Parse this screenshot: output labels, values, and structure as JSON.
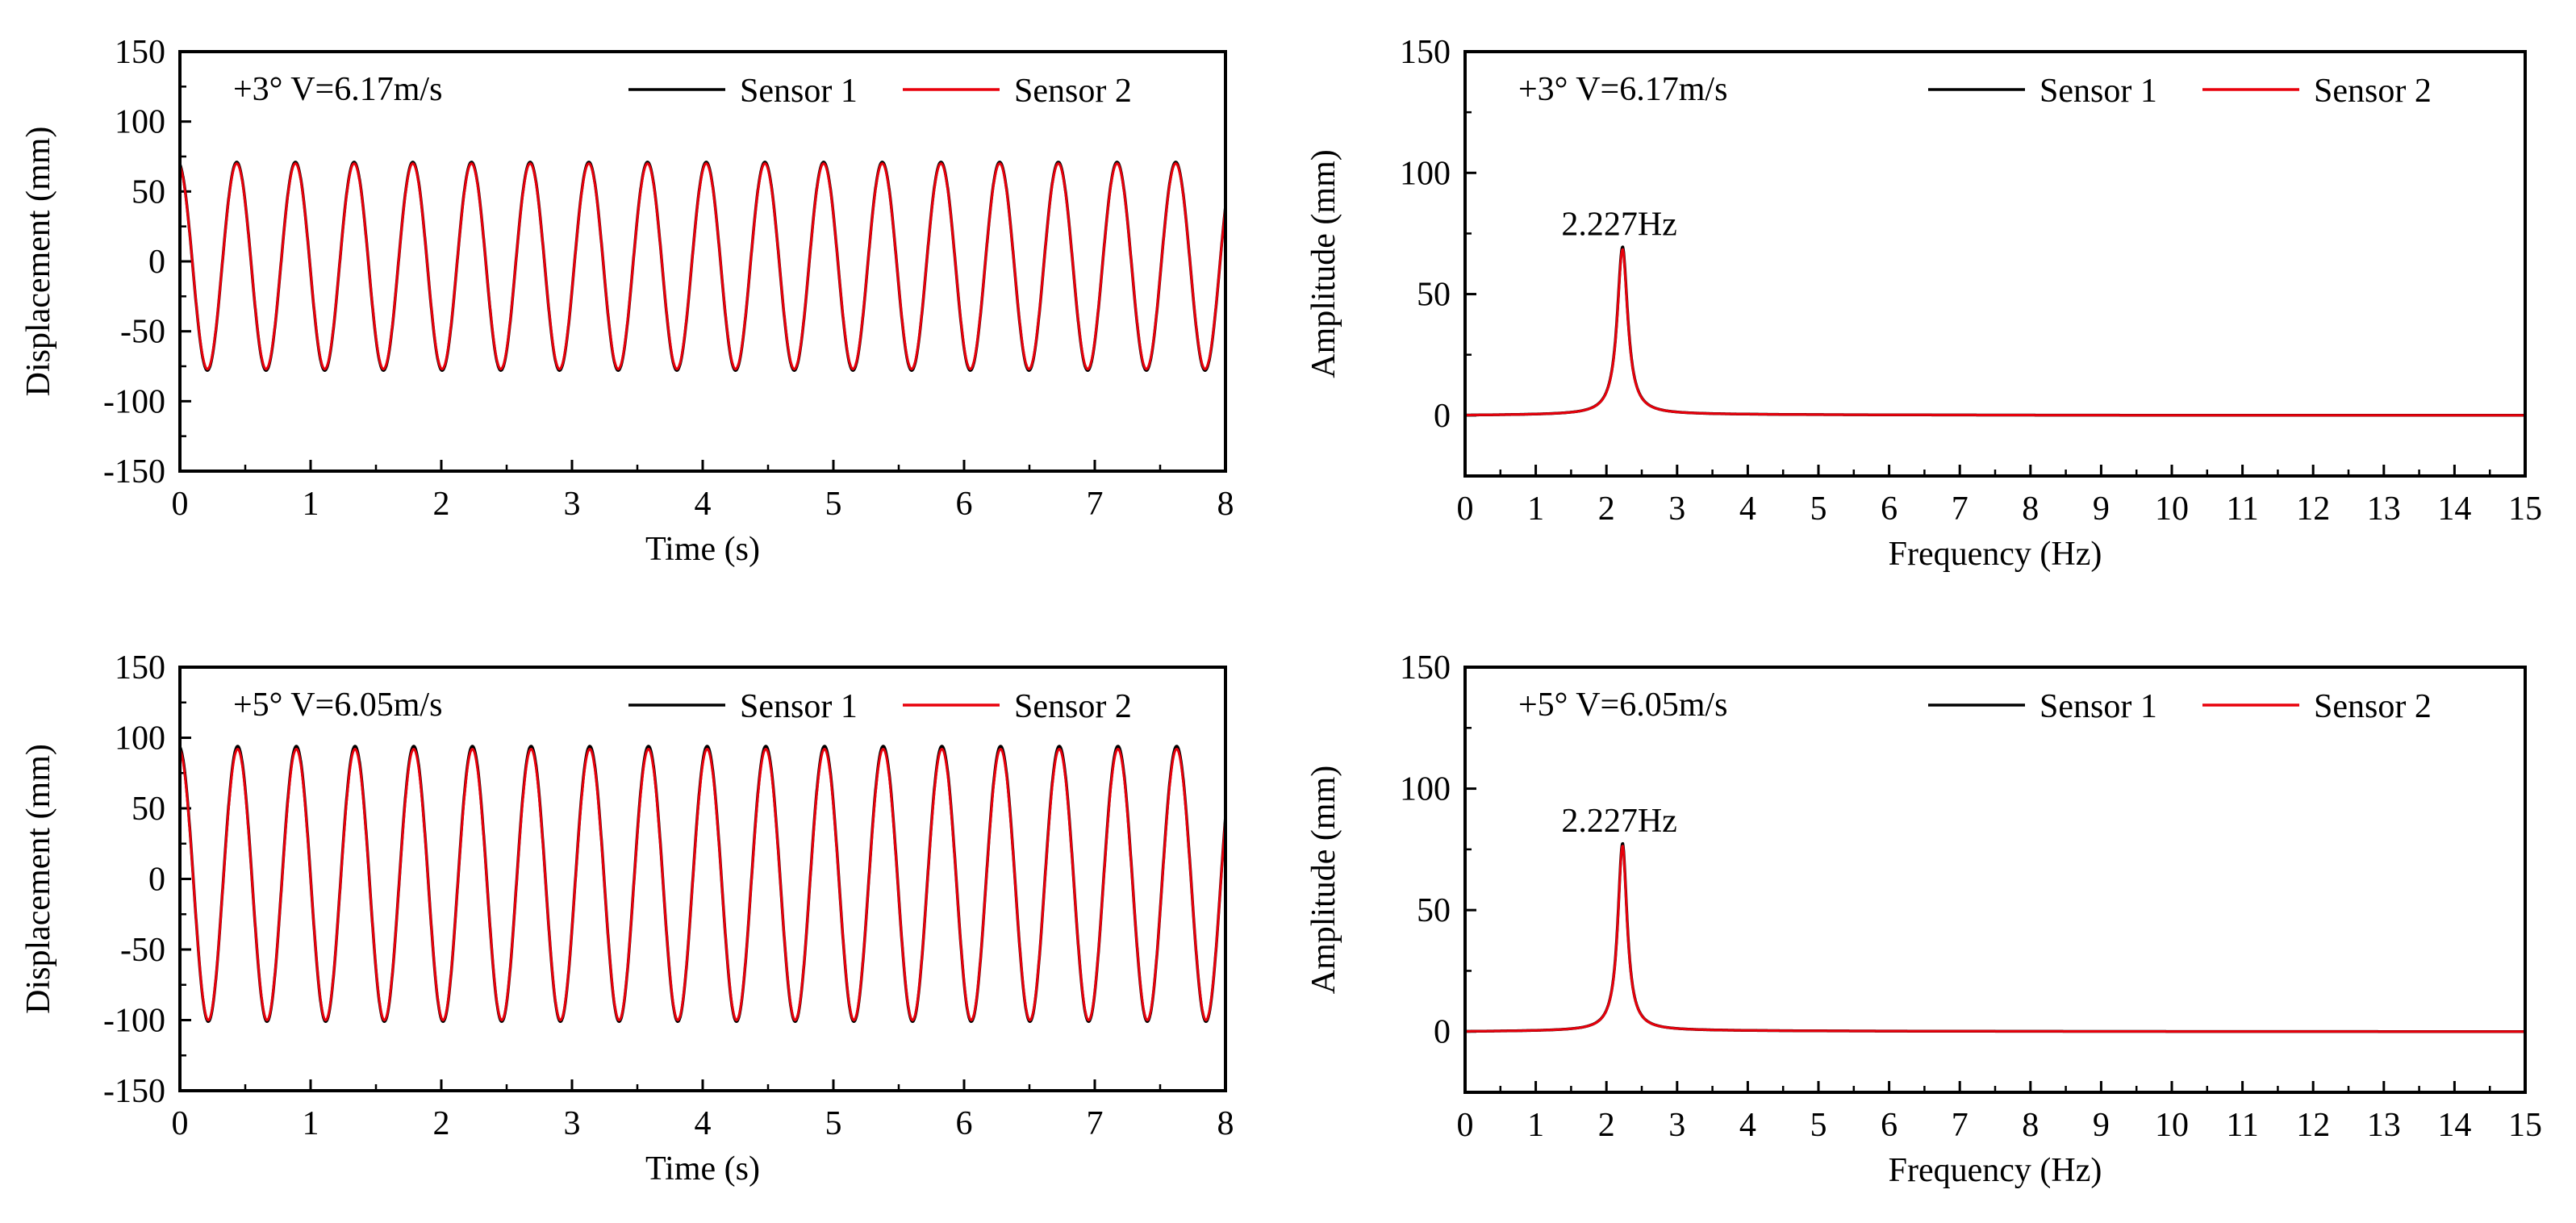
{
  "figure": {
    "layout": "2x2 grid of time-domain and frequency-domain response plots",
    "colors": {
      "sensor1": "#000000",
      "sensor2": "#e8000b",
      "axis": "#000000",
      "background": "#ffffff"
    }
  },
  "chart_data": [
    {
      "type": "line",
      "subplot": "top-left",
      "annotation": "+3° V=6.17m/s",
      "xlabel": "Time (s)",
      "ylabel": "Displacement (mm)",
      "xlim": [
        0,
        8
      ],
      "ylim": [
        -150,
        150
      ],
      "xticks": [
        0,
        1,
        2,
        3,
        4,
        5,
        6,
        7,
        8
      ],
      "yticks": [
        -150,
        -100,
        -50,
        0,
        50,
        100,
        150
      ],
      "legend": [
        "Sensor 1",
        "Sensor 2"
      ],
      "legend_position": "top-right",
      "signal": {
        "frequency_hz": 2.227,
        "offset_mm": -3.5,
        "amplitude_mm": 73.5,
        "phase_rad": 0.2,
        "t_end_s": 8
      },
      "series": [
        {
          "name": "Sensor 1",
          "color": "#000000",
          "max_mm": 71,
          "min_mm": -78
        },
        {
          "name": "Sensor 2",
          "color": "#e8000b",
          "max_mm": 70,
          "min_mm": -77
        }
      ]
    },
    {
      "type": "line",
      "subplot": "top-right",
      "annotation": "+3° V=6.17m/s",
      "xlabel": "Frequency (Hz)",
      "ylabel": "Amplitude (mm)",
      "xlim": [
        0,
        15
      ],
      "ylim": [
        -25,
        150
      ],
      "xticks": [
        0,
        1,
        2,
        3,
        4,
        5,
        6,
        7,
        8,
        9,
        10,
        11,
        12,
        13,
        14,
        15
      ],
      "yticks": [
        0,
        50,
        100,
        150
      ],
      "legend": [
        "Sensor 1",
        "Sensor 2"
      ],
      "legend_position": "top-right",
      "peak_label": "2.227Hz",
      "spectrum": {
        "peak_hz": 2.227,
        "peak_mm": 68,
        "width_hz": 0.09,
        "tail_start_hz": 2.8,
        "tail_mm": 0
      },
      "series": [
        {
          "name": "Sensor 1",
          "color": "#000000",
          "peak_mm": 69
        },
        {
          "name": "Sensor 2",
          "color": "#e8000b",
          "peak_mm": 68
        }
      ]
    },
    {
      "type": "line",
      "subplot": "bottom-left",
      "annotation": "+5° V=6.05m/s",
      "xlabel": "Time (s)",
      "ylabel": "Displacement (mm)",
      "xlim": [
        0,
        8
      ],
      "ylim": [
        -150,
        150
      ],
      "xticks": [
        0,
        1,
        2,
        3,
        4,
        5,
        6,
        7,
        8
      ],
      "yticks": [
        -150,
        -100,
        -50,
        0,
        50,
        100,
        150
      ],
      "legend": [
        "Sensor 1",
        "Sensor 2"
      ],
      "legend_position": "top-right",
      "signal": {
        "frequency_hz": 2.227,
        "offset_mm": -4,
        "amplitude_mm": 96.5,
        "phase_rad": 0.1,
        "t_end_s": 8
      },
      "series": [
        {
          "name": "Sensor 1",
          "color": "#000000",
          "max_mm": 94,
          "min_mm": -101
        },
        {
          "name": "Sensor 2",
          "color": "#e8000b",
          "max_mm": 92,
          "min_mm": -100
        }
      ]
    },
    {
      "type": "line",
      "subplot": "bottom-right",
      "annotation": "+5° V=6.05m/s",
      "xlabel": "Frequency (Hz)",
      "ylabel": "Amplitude (mm)",
      "xlim": [
        0,
        15
      ],
      "ylim": [
        -25,
        150
      ],
      "xticks": [
        0,
        1,
        2,
        3,
        4,
        5,
        6,
        7,
        8,
        9,
        10,
        11,
        12,
        13,
        14,
        15
      ],
      "yticks": [
        0,
        50,
        100,
        150
      ],
      "legend": [
        "Sensor 1",
        "Sensor 2"
      ],
      "legend_position": "top-right",
      "peak_label": "2.227Hz",
      "spectrum": {
        "peak_hz": 2.227,
        "peak_mm": 76,
        "width_hz": 0.08,
        "tail_start_hz": 2.8,
        "tail_mm": 0
      },
      "series": [
        {
          "name": "Sensor 1",
          "color": "#000000",
          "peak_mm": 77
        },
        {
          "name": "Sensor 2",
          "color": "#e8000b",
          "peak_mm": 76
        }
      ]
    }
  ]
}
